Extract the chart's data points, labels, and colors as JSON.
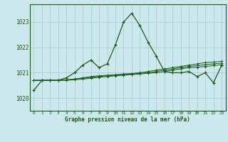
{
  "title": "Graphe pression niveau de la mer (hPa)",
  "bg_color": "#cce8ec",
  "grid_color": "#aad0d8",
  "line_color": "#1a5c1a",
  "x_ticks": [
    0,
    1,
    2,
    3,
    4,
    5,
    6,
    7,
    8,
    9,
    10,
    11,
    12,
    13,
    14,
    15,
    16,
    17,
    18,
    19,
    20,
    21,
    22,
    23
  ],
  "y_ticks": [
    1020,
    1021,
    1022,
    1023
  ],
  "ylim": [
    1019.5,
    1023.7
  ],
  "xlim": [
    -0.5,
    23.5
  ],
  "series": [
    [
      1020.3,
      1020.7,
      1020.7,
      1020.7,
      1020.8,
      1021.0,
      1021.3,
      1021.5,
      1021.2,
      1021.35,
      1022.1,
      1023.0,
      1023.35,
      1022.85,
      1022.2,
      1021.65,
      1021.05,
      1021.0,
      1021.0,
      1021.05,
      1020.85,
      1021.0,
      1020.6,
      1021.3
    ],
    [
      1020.7,
      1020.7,
      1020.7,
      1020.7,
      1020.72,
      1020.75,
      1020.8,
      1020.85,
      1020.88,
      1020.9,
      1020.92,
      1020.95,
      1020.97,
      1021.0,
      1021.05,
      1021.1,
      1021.15,
      1021.2,
      1021.25,
      1021.3,
      1021.35,
      1021.4,
      1021.42,
      1021.45
    ],
    [
      1020.7,
      1020.7,
      1020.7,
      1020.7,
      1020.72,
      1020.75,
      1020.78,
      1020.82,
      1020.85,
      1020.88,
      1020.9,
      1020.93,
      1020.95,
      1020.98,
      1021.0,
      1021.05,
      1021.1,
      1021.15,
      1021.2,
      1021.25,
      1021.28,
      1021.32,
      1021.35,
      1021.38
    ],
    [
      1020.7,
      1020.7,
      1020.7,
      1020.7,
      1020.7,
      1020.72,
      1020.75,
      1020.78,
      1020.82,
      1020.85,
      1020.88,
      1020.9,
      1020.93,
      1020.95,
      1020.98,
      1021.0,
      1021.05,
      1021.1,
      1021.15,
      1021.2,
      1021.22,
      1021.25,
      1021.28,
      1021.32
    ]
  ]
}
